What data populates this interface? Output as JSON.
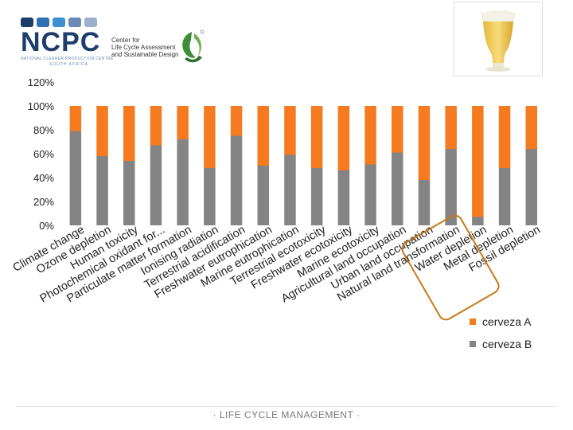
{
  "header": {
    "logo_ncpc": "NCPC",
    "ncpc_subtitle": "NATIONAL CLEANER PRODUCTION CENTRE",
    "ncpc_country": "SOUTH AFRICA",
    "lca_center_line1": "Center for",
    "lca_center_line2": "Life Cycle Assessment",
    "lca_center_line3": "and Sustainable Design"
  },
  "icons": {
    "beer_glass": "beer-glass-icon",
    "lca_logo": "recycle-leaf-icon"
  },
  "colors": {
    "cerveza_a": "#F57A20",
    "cerveza_b": "#848484",
    "highlight": "#C8781A",
    "brand": "#1E3D6B"
  },
  "chart_data": {
    "type": "bar",
    "stacked": true,
    "percent": true,
    "title": "",
    "xlabel": "",
    "ylabel": "",
    "ylim": [
      0,
      120
    ],
    "ytick_labels": [
      "0%",
      "20%",
      "40%",
      "60%",
      "80%",
      "100%",
      "120%"
    ],
    "ytick_values": [
      0,
      20,
      40,
      60,
      80,
      100,
      120
    ],
    "categories": [
      "Climate change",
      "Ozone depletion",
      "Human toxicity",
      "Photochemical oxidant formation",
      "Particulate matter formation",
      "Ionising radiation",
      "Terrestrial acidification",
      "Freshwater eutrophication",
      "Marine eutrophication",
      "Terrestrial ecotoxicity",
      "Freshwater ecotoxicity",
      "Marine ecotoxicity",
      "Agricultural land occupation",
      "Urban land occupation",
      "Natural land transformation",
      "Water depletion",
      "Metal depletion",
      "Fossil depletion"
    ],
    "tick_labels": [
      "Climate change",
      "Ozone depletion",
      "Human toxicity",
      "Photochemical oxidant for...",
      "Particulate matter formation",
      "Ionising radiation",
      "Terrestrial acidification",
      "Freshwater eutrophication",
      "Marine eutrophication",
      "Terrestrial ecotoxicity",
      "Freshwater ecotoxicity",
      "Marine ecotoxicity",
      "Agricultural land occupation",
      "Urban land occupation",
      "Natural land transformation",
      "Water depletion",
      "Metal depletion",
      "Fossil depletion"
    ],
    "series": [
      {
        "name": "cerveza B",
        "values": [
          79,
          58,
          54,
          67,
          72,
          48,
          75,
          50,
          59,
          48,
          46,
          51,
          61,
          38,
          64,
          7,
          48,
          64
        ]
      },
      {
        "name": "cerveza A",
        "values": [
          21,
          42,
          46,
          33,
          28,
          52,
          25,
          50,
          41,
          52,
          54,
          49,
          39,
          62,
          36,
          93,
          52,
          36
        ]
      }
    ],
    "legend": [
      "cerveza A",
      "cerveza B"
    ],
    "legend_position": "bottom-right",
    "highlighted_categories": [
      "Water depletion",
      "Metal depletion"
    ],
    "grid": false
  },
  "footer": {
    "text": "· LIFE CYCLE MANAGEMENT ·"
  }
}
